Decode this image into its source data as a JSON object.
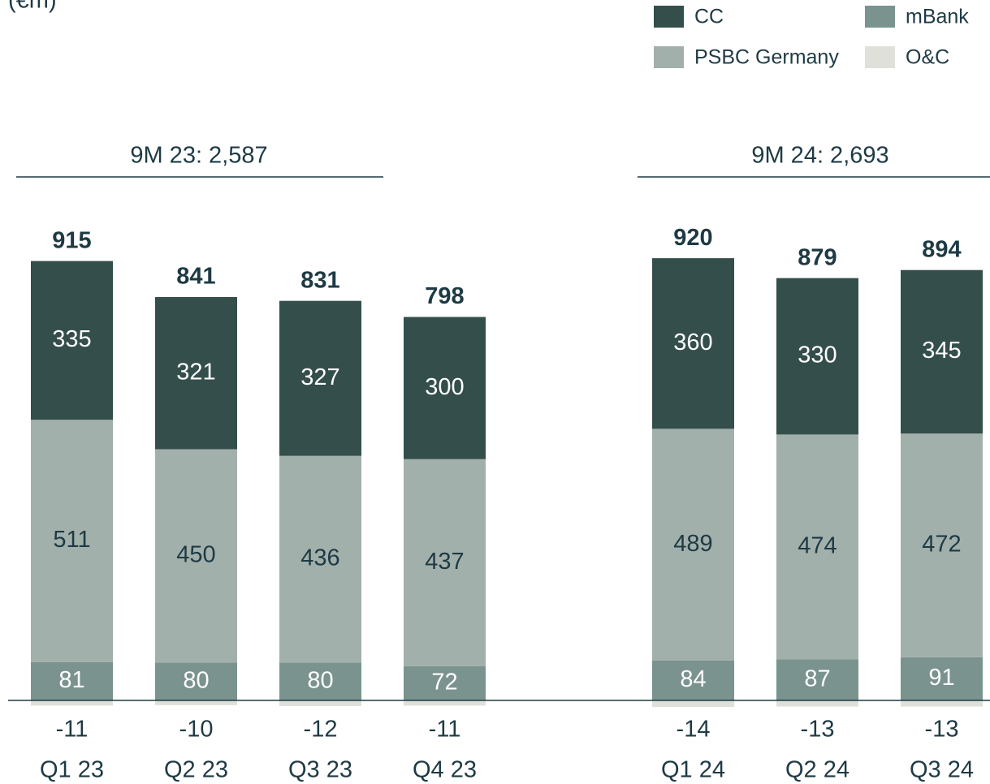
{
  "chart_data": {
    "type": "stacked-bar",
    "subtitle": "(€m)",
    "categories": [
      "Q1 23",
      "Q2 23",
      "Q3 23",
      "Q4 23",
      "Q1 24",
      "Q2 24",
      "Q3 24"
    ],
    "series": [
      {
        "name": "CC",
        "color": "#344e4b",
        "values": [
          335,
          321,
          327,
          300,
          360,
          330,
          345
        ]
      },
      {
        "name": "mBank",
        "color": "#7a938e",
        "values": [
          81,
          80,
          80,
          72,
          84,
          87,
          91
        ]
      },
      {
        "name": "PSBC Germany",
        "color": "#a2b0ab",
        "values": [
          511,
          450,
          436,
          437,
          489,
          474,
          472
        ]
      },
      {
        "name": "O&C",
        "color": "#e0e0da",
        "values": [
          -11,
          -10,
          -12,
          -11,
          -14,
          -13,
          -13
        ]
      }
    ],
    "totals": [
      915,
      841,
      831,
      798,
      920,
      879,
      894
    ],
    "annotations": [
      "9M 23: 2,587",
      "9M 24: 2,693"
    ]
  }
}
